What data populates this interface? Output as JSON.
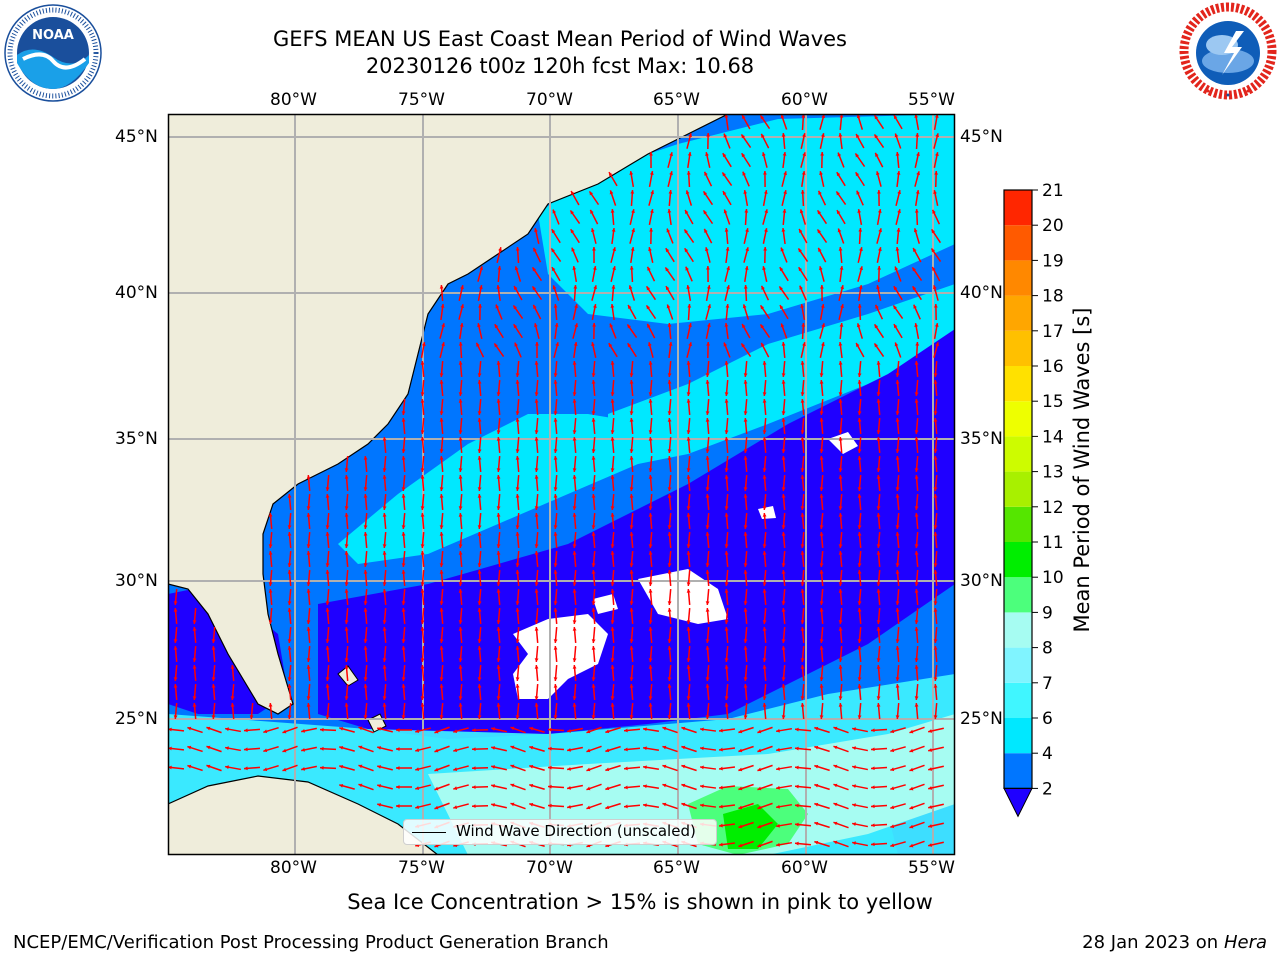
{
  "header": {
    "title_line1": "GEFS MEAN US East Coast Mean Period of Wind Waves",
    "title_line2": "20230126 t00z 120h fcst   Max: 10.68"
  },
  "logos": {
    "left": {
      "name": "NOAA",
      "text": "NOAA",
      "ring_text": "NATIONAL OCEANIC AND ATMOSPHERIC ADMINISTRATION · U.S. DEPARTMENT OF COMMERCE"
    },
    "right": {
      "name": "National Weather Service",
      "ring_text": "NATIONAL WEATHER SERVICE"
    }
  },
  "map": {
    "lon_labels": [
      "80°W",
      "75°W",
      "70°W",
      "65°W",
      "60°W",
      "55°W"
    ],
    "lat_labels": [
      "45°N",
      "40°N",
      "35°N",
      "30°N",
      "25°N"
    ],
    "legend_label": "Wind Wave Direction (unscaled)",
    "arrow_color": "#ff0000",
    "land_color": "#efeddb"
  },
  "colorbar": {
    "label": "Mean Period of Wind Waves [s]",
    "ticks": [
      "2",
      "4",
      "6",
      "7",
      "8",
      "9",
      "10",
      "11",
      "12",
      "13",
      "14",
      "15",
      "16",
      "17",
      "18",
      "19",
      "20",
      "21"
    ],
    "colors": [
      "#0076ff",
      "#00e8ff",
      "#40f6ff",
      "#80f4ff",
      "#a6fcf2",
      "#4cff7c",
      "#00ee00",
      "#55e600",
      "#a8f000",
      "#cdfc00",
      "#eeff00",
      "#ffe100",
      "#ffc000",
      "#ffa600",
      "#ff8800",
      "#ff5a00",
      "#ff2600",
      "#ff0000"
    ],
    "extend_color": "#1f00ff"
  },
  "footer": {
    "caption": "Sea Ice Concentration > 15% is shown in pink to yellow",
    "credit": "NCEP/EMC/Verification Post Processing Product Generation Branch",
    "date_prefix": "28 Jan 2023 on ",
    "date_machine": "Hera"
  }
}
